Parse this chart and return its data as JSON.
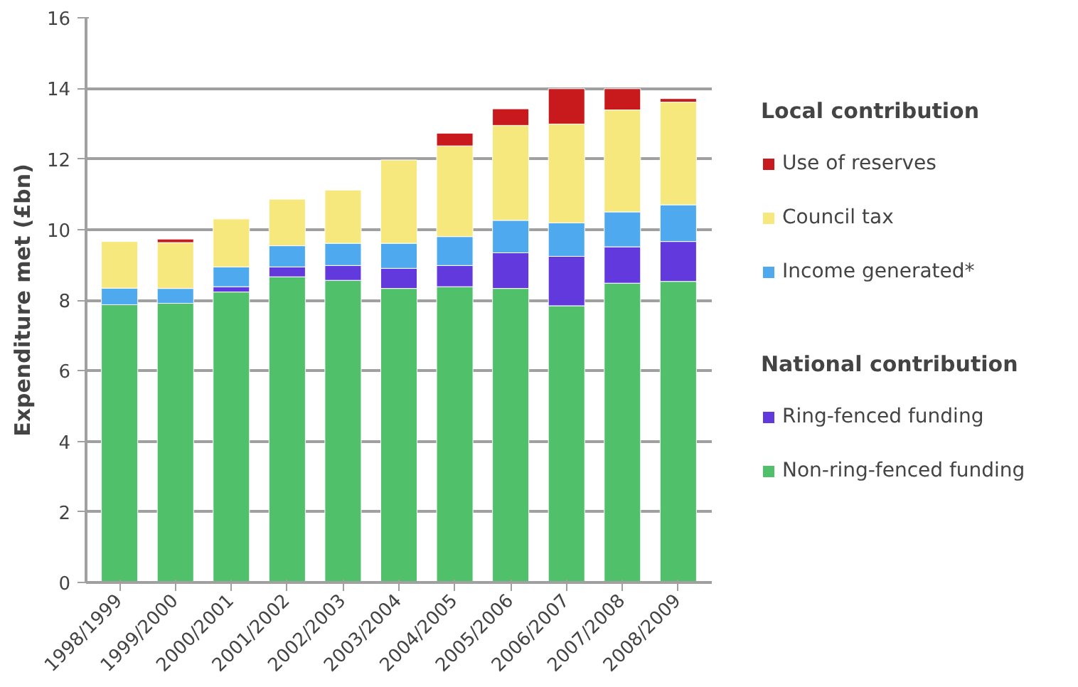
{
  "chart_data": {
    "type": "bar",
    "stacked": true,
    "ylabel": "Expenditure met (£bn)",
    "categories": [
      "1998/1999",
      "1999/2000",
      "2000/2001",
      "2001/2002",
      "2002/2003",
      "2003/2004",
      "2004/2005",
      "2005/2006",
      "2006/2007",
      "2007/2008",
      "2008/2009"
    ],
    "series": [
      {
        "name": "Non-ring-fenced funding",
        "color": "#50c16a",
        "values": [
          7.87,
          7.91,
          8.23,
          8.66,
          8.56,
          8.33,
          8.38,
          8.33,
          7.84,
          8.48,
          8.53
        ]
      },
      {
        "name": "Ring-fenced funding",
        "color": "#6239dc",
        "values": [
          null,
          null,
          0.15,
          0.28,
          0.42,
          0.57,
          0.6,
          1.01,
          1.4,
          1.03,
          1.13
        ]
      },
      {
        "name": "Income generated*",
        "color": "#4fa9ee",
        "values": [
          0.47,
          0.42,
          0.56,
          0.6,
          0.63,
          0.71,
          0.82,
          0.92,
          0.95,
          0.99,
          1.04
        ]
      },
      {
        "name": "Council tax",
        "color": "#f6e87c",
        "values": [
          1.32,
          1.3,
          1.36,
          1.32,
          1.51,
          2.36,
          2.57,
          2.69,
          2.8,
          2.89,
          2.91
        ]
      },
      {
        "name": "Use of reserves",
        "color": "#c8191c",
        "values": [
          null,
          0.1,
          null,
          null,
          null,
          null,
          0.36,
          0.47,
          1.0,
          0.6,
          0.1
        ]
      }
    ],
    "annotations": [
      "Local contribution",
      "National contribution"
    ],
    "ylim": [
      0,
      16
    ],
    "yticks": [
      0,
      2,
      4,
      6,
      8,
      10,
      12,
      14,
      16
    ],
    "grid": "y",
    "legend": "right"
  }
}
